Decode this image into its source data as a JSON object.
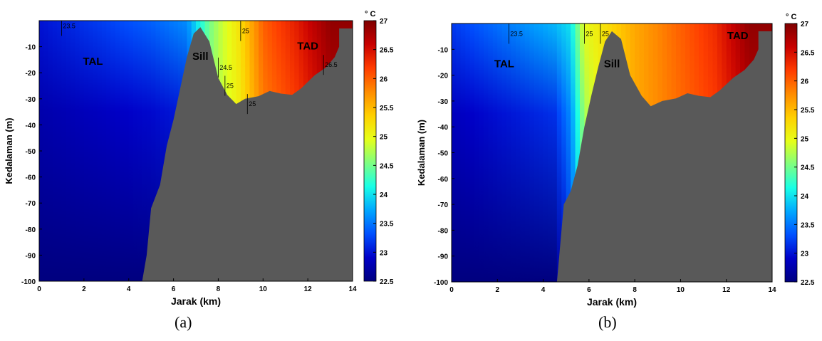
{
  "colors": {
    "bathymetry": "#595959",
    "frame": "#000000",
    "contour": "#000000"
  },
  "colormap": [
    "#00007f",
    "#0000c8",
    "#0050ff",
    "#00a8ff",
    "#19ffe6",
    "#7fff80",
    "#e6ff19",
    "#ffd000",
    "#ff8c00",
    "#ff3c00",
    "#c80000",
    "#7f0000"
  ],
  "figure": {
    "caption_a": "(a)",
    "caption_b": "(b)"
  },
  "chart_data": [
    {
      "type": "heatmap",
      "panel": "(a)",
      "xlabel": "Jarak (km)",
      "ylabel": "Kedalaman (m)",
      "xlim": [
        0,
        14
      ],
      "ylim": [
        -100,
        0
      ],
      "xticks": [
        0,
        2,
        4,
        6,
        8,
        10,
        12,
        14
      ],
      "yticks": [
        -10,
        -20,
        -30,
        -40,
        -50,
        -60,
        -70,
        -80,
        -90,
        -100
      ],
      "colorbar": {
        "unit": "° C",
        "range": [
          22.5,
          27
        ],
        "ticks": [
          22.5,
          23,
          23.5,
          24,
          24.5,
          25,
          25.5,
          26,
          26.5,
          27
        ]
      },
      "annotations": [
        {
          "text": "TAL",
          "x": 2.4,
          "y": -17
        },
        {
          "text": "Sill",
          "x": 7.2,
          "y": -15
        },
        {
          "text": "TAD",
          "x": 12.0,
          "y": -11
        }
      ],
      "contour_labels": [
        {
          "text": "23.5",
          "x": 1.0,
          "y": -2
        },
        {
          "text": "24.5",
          "x": 8.0,
          "y": -18
        },
        {
          "text": "25",
          "x": 8.3,
          "y": -25
        },
        {
          "text": "25",
          "x": 9.0,
          "y": -4
        },
        {
          "text": "25",
          "x": 9.3,
          "y": -32
        },
        {
          "text": "26.5",
          "x": 12.7,
          "y": -17
        }
      ],
      "bathymetry_depth": [
        [
          0,
          -100
        ],
        [
          4.6,
          -100
        ],
        [
          4.8,
          -90
        ],
        [
          5.0,
          -72
        ],
        [
          5.4,
          -63
        ],
        [
          5.7,
          -48
        ],
        [
          6.0,
          -38
        ],
        [
          6.3,
          -26
        ],
        [
          6.6,
          -14
        ],
        [
          6.9,
          -5
        ],
        [
          7.2,
          -2.5
        ],
        [
          7.6,
          -8
        ],
        [
          8.0,
          -22
        ],
        [
          8.4,
          -28.5
        ],
        [
          8.8,
          -32
        ],
        [
          9.2,
          -30
        ],
        [
          9.8,
          -29
        ],
        [
          10.3,
          -27
        ],
        [
          10.8,
          -28
        ],
        [
          11.3,
          -28.5
        ],
        [
          11.7,
          -26
        ],
        [
          12.3,
          -21
        ],
        [
          12.8,
          -18
        ],
        [
          13.2,
          -14
        ],
        [
          13.4,
          -10
        ],
        [
          13.4,
          -3
        ],
        [
          14,
          -3
        ],
        [
          14,
          -100
        ]
      ],
      "temperature_field": [
        {
          "x": 0,
          "surface": 23.0,
          "deep": 22.5
        },
        {
          "x": 5.0,
          "surface": 23.4,
          "deep": 22.5
        },
        {
          "x": 6.6,
          "surface": 23.6,
          "deep": 22.5
        },
        {
          "x": 7.6,
          "surface": 24.5,
          "deep": 24.6
        },
        {
          "x": 8.1,
          "surface": 24.8,
          "deep": 24.8
        },
        {
          "x": 8.9,
          "surface": 25.2,
          "deep": 25.0
        },
        {
          "x": 10.0,
          "surface": 26.0,
          "deep": 25.7
        },
        {
          "x": 11.5,
          "surface": 26.4,
          "deep": 26.0
        },
        {
          "x": 13.0,
          "surface": 26.9,
          "deep": 26.5
        }
      ]
    },
    {
      "type": "heatmap",
      "panel": "(b)",
      "xlabel": "Jarak (km)",
      "ylabel": "Kedalaman (m)",
      "xlim": [
        0,
        14
      ],
      "ylim": [
        -100,
        0
      ],
      "xticks": [
        0,
        2,
        4,
        6,
        8,
        10,
        12,
        14
      ],
      "yticks": [
        -10,
        -20,
        -30,
        -40,
        -50,
        -60,
        -70,
        -80,
        -90,
        -100
      ],
      "colorbar": {
        "unit": "° C",
        "range": [
          22.5,
          27
        ],
        "ticks": [
          22.5,
          23,
          23.5,
          24,
          24.5,
          25,
          25.5,
          26,
          26.5,
          27
        ]
      },
      "annotations": [
        {
          "text": "TAL",
          "x": 2.3,
          "y": -17
        },
        {
          "text": "Sill",
          "x": 7.0,
          "y": -17
        },
        {
          "text": "TAD",
          "x": 12.5,
          "y": -6
        }
      ],
      "contour_labels": [
        {
          "text": "23.5",
          "x": 2.5,
          "y": -4
        },
        {
          "text": "25",
          "x": 5.8,
          "y": -4
        },
        {
          "text": "25",
          "x": 6.5,
          "y": -4
        }
      ],
      "bathymetry_depth": [
        [
          0,
          -100
        ],
        [
          4.6,
          -100
        ],
        [
          4.7,
          -90
        ],
        [
          4.9,
          -70
        ],
        [
          5.2,
          -65
        ],
        [
          5.5,
          -55
        ],
        [
          5.8,
          -40
        ],
        [
          6.1,
          -28
        ],
        [
          6.4,
          -17
        ],
        [
          6.7,
          -7
        ],
        [
          7.0,
          -3
        ],
        [
          7.4,
          -6
        ],
        [
          7.8,
          -20
        ],
        [
          8.3,
          -28
        ],
        [
          8.7,
          -32
        ],
        [
          9.2,
          -30
        ],
        [
          9.8,
          -29
        ],
        [
          10.3,
          -27
        ],
        [
          10.8,
          -28
        ],
        [
          11.3,
          -28.5
        ],
        [
          11.7,
          -26
        ],
        [
          12.3,
          -21
        ],
        [
          12.8,
          -18
        ],
        [
          13.2,
          -14
        ],
        [
          13.4,
          -10
        ],
        [
          13.4,
          -3
        ],
        [
          14,
          -3
        ],
        [
          14,
          -100
        ]
      ],
      "temperature_field": [
        {
          "x": 0,
          "surface": 23.2,
          "deep": 22.5
        },
        {
          "x": 4.5,
          "surface": 23.8,
          "deep": 22.5
        },
        {
          "x": 5.2,
          "surface": 24.0,
          "deep": 23.2
        },
        {
          "x": 5.8,
          "surface": 25.0,
          "deep": 24.4
        },
        {
          "x": 6.6,
          "surface": 25.2,
          "deep": 25.0
        },
        {
          "x": 8.0,
          "surface": 25.6,
          "deep": 25.6
        },
        {
          "x": 10.0,
          "surface": 26.0,
          "deep": 25.9
        },
        {
          "x": 11.5,
          "surface": 26.3,
          "deep": 26.1
        },
        {
          "x": 13.0,
          "surface": 26.9,
          "deep": 26.5
        }
      ]
    }
  ]
}
